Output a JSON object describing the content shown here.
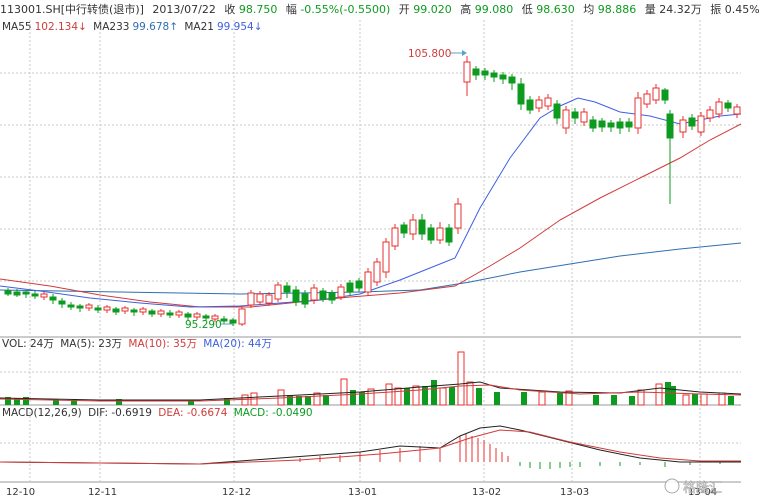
{
  "header": {
    "symbol": "113001.SH[中行转债(退市)]",
    "date": "2013/07/22",
    "close_label": "收",
    "close_value": "98.750",
    "change_label": "幅",
    "change_value": "-0.55%(-0.5500)",
    "open_label": "开",
    "open_value": "99.020",
    "high_label": "高",
    "high_value": "99.080",
    "low_label": "低",
    "low_value": "98.630",
    "avg_label": "均",
    "avg_value": "98.886",
    "volume_label": "量",
    "volume_value": "24.32万",
    "amplitude_label": "振",
    "amplitude_value": "0.45%"
  },
  "ma_legend": {
    "ma55_label": "MA55",
    "ma55_value": "102.134↓",
    "ma233_label": "MA233",
    "ma233_value": "99.678↑",
    "ma21_label": "MA21",
    "ma21_value": "99.954↓"
  },
  "vol_legend": {
    "vol": "VOL: 24万",
    "ma5": "MA(5): 23万",
    "ma10": "MA(10): 35万",
    "ma20": "MA(20): 44万"
  },
  "macd_legend": {
    "macd": "MACD(12,26,9)",
    "dif": "DIF: -0.6919",
    "dea": "DEA: -0.6674",
    "macd_value": "MACD: -0.0490"
  },
  "annotations": {
    "high_marker": "105.800",
    "low_marker": "95.290"
  },
  "x_axis": [
    "12-10",
    "12-11",
    "12-12",
    "13-01",
    "13-02",
    "13-03",
    "13-04"
  ],
  "watermark": "格隆汇",
  "colors": {
    "up": "#e8312f",
    "down": "#0d9b1f",
    "ma55": "#d03b3b",
    "ma233": "#2f6fb0",
    "ma21": "#3f5fe0",
    "grid": "#c9c9c9"
  }
}
